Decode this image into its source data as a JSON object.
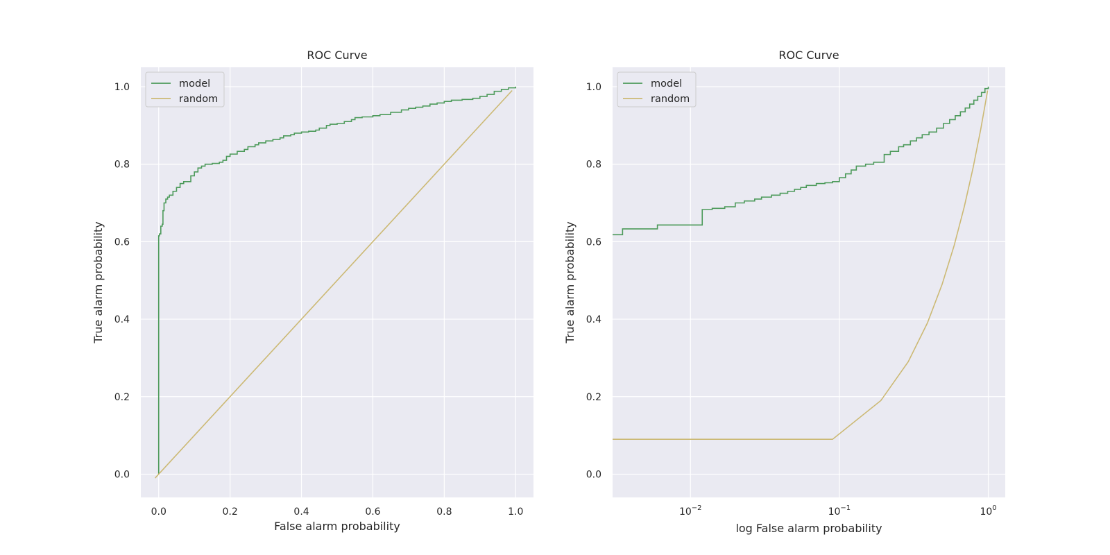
{
  "chart_data": [
    {
      "type": "line",
      "title": "ROC Curve",
      "xlabel": "False alarm probability",
      "ylabel": "True alarm probability",
      "xscale": "linear",
      "xlim": [
        -0.05,
        1.05
      ],
      "ylim": [
        -0.06,
        1.05
      ],
      "xticks": [
        0.0,
        0.2,
        0.4,
        0.6,
        0.8,
        1.0
      ],
      "xtick_labels": [
        "0.0",
        "0.2",
        "0.4",
        "0.6",
        "0.8",
        "1.0"
      ],
      "yticks": [
        0.0,
        0.2,
        0.4,
        0.6,
        0.8,
        1.0
      ],
      "ytick_labels": [
        "0.0",
        "0.2",
        "0.4",
        "0.6",
        "0.8",
        "1.0"
      ],
      "grid": true,
      "legend": "top-left",
      "series": [
        {
          "name": "model",
          "color": "#4c9a5a",
          "step": true,
          "x": [
            0.0,
            0.0,
            0.002,
            0.006,
            0.01,
            0.012,
            0.015,
            0.02,
            0.025,
            0.03,
            0.04,
            0.05,
            0.06,
            0.07,
            0.09,
            0.1,
            0.11,
            0.12,
            0.13,
            0.15,
            0.17,
            0.18,
            0.19,
            0.2,
            0.22,
            0.24,
            0.25,
            0.27,
            0.28,
            0.3,
            0.32,
            0.34,
            0.35,
            0.37,
            0.38,
            0.4,
            0.42,
            0.44,
            0.45,
            0.47,
            0.48,
            0.5,
            0.52,
            0.54,
            0.55,
            0.57,
            0.6,
            0.62,
            0.65,
            0.68,
            0.7,
            0.72,
            0.74,
            0.76,
            0.78,
            0.8,
            0.82,
            0.85,
            0.88,
            0.9,
            0.92,
            0.94,
            0.96,
            0.98,
            1.0
          ],
          "y": [
            0.0,
            0.615,
            0.62,
            0.64,
            0.645,
            0.68,
            0.7,
            0.71,
            0.715,
            0.72,
            0.73,
            0.74,
            0.75,
            0.755,
            0.77,
            0.78,
            0.79,
            0.795,
            0.8,
            0.802,
            0.805,
            0.81,
            0.82,
            0.826,
            0.833,
            0.838,
            0.845,
            0.85,
            0.855,
            0.86,
            0.864,
            0.868,
            0.873,
            0.876,
            0.88,
            0.883,
            0.885,
            0.888,
            0.893,
            0.9,
            0.903,
            0.905,
            0.91,
            0.915,
            0.92,
            0.922,
            0.925,
            0.928,
            0.934,
            0.94,
            0.944,
            0.947,
            0.95,
            0.955,
            0.958,
            0.962,
            0.965,
            0.967,
            0.97,
            0.975,
            0.98,
            0.988,
            0.993,
            0.997,
            1.0
          ]
        },
        {
          "name": "random",
          "color": "#ccb974",
          "step": false,
          "x": [
            -0.01,
            0.99
          ],
          "y": [
            -0.01,
            0.99
          ]
        }
      ]
    },
    {
      "type": "line",
      "title": "ROC Curve",
      "xlabel": "log False alarm probability",
      "ylabel": "True alarm probability",
      "xscale": "log",
      "xlim": [
        0.003,
        1.3
      ],
      "ylim": [
        -0.06,
        1.05
      ],
      "xticks": [
        0.01,
        0.1,
        1.0
      ],
      "xtick_labels": [
        {
          "base": "10",
          "exp": "−2"
        },
        {
          "base": "10",
          "exp": "−1"
        },
        {
          "base": "10",
          "exp": "0"
        }
      ],
      "yticks": [
        0.0,
        0.2,
        0.4,
        0.6,
        0.8,
        1.0
      ],
      "ytick_labels": [
        "0.0",
        "0.2",
        "0.4",
        "0.6",
        "0.8",
        "1.0"
      ],
      "grid": true,
      "legend": "top-left",
      "series": [
        {
          "name": "model",
          "color": "#4c9a5a",
          "step": true,
          "x": [
            0.003,
            0.0035,
            0.006,
            0.012,
            0.014,
            0.017,
            0.02,
            0.023,
            0.027,
            0.03,
            0.035,
            0.04,
            0.045,
            0.05,
            0.055,
            0.06,
            0.07,
            0.08,
            0.09,
            0.1,
            0.11,
            0.12,
            0.13,
            0.15,
            0.17,
            0.2,
            0.22,
            0.25,
            0.27,
            0.3,
            0.33,
            0.36,
            0.4,
            0.45,
            0.5,
            0.55,
            0.6,
            0.65,
            0.7,
            0.75,
            0.8,
            0.85,
            0.9,
            0.95,
            1.0
          ],
          "y": [
            0.618,
            0.633,
            0.643,
            0.683,
            0.686,
            0.69,
            0.7,
            0.705,
            0.71,
            0.715,
            0.72,
            0.725,
            0.73,
            0.735,
            0.74,
            0.745,
            0.75,
            0.752,
            0.755,
            0.765,
            0.775,
            0.785,
            0.795,
            0.8,
            0.805,
            0.825,
            0.833,
            0.845,
            0.85,
            0.86,
            0.868,
            0.876,
            0.883,
            0.893,
            0.905,
            0.915,
            0.925,
            0.935,
            0.945,
            0.955,
            0.965,
            0.975,
            0.985,
            0.995,
            1.0
          ]
        },
        {
          "name": "random",
          "color": "#ccb974",
          "step": false,
          "x": [
            0.003,
            0.09,
            0.19,
            0.29,
            0.39,
            0.49,
            0.59,
            0.69,
            0.79,
            0.89,
            0.99
          ],
          "y": [
            0.09,
            0.09,
            0.19,
            0.29,
            0.39,
            0.49,
            0.59,
            0.69,
            0.79,
            0.89,
            0.99
          ]
        }
      ]
    }
  ]
}
